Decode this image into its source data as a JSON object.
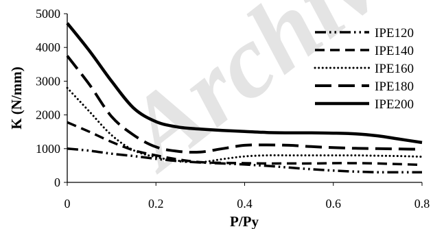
{
  "chart_data": {
    "type": "line",
    "xlabel": "P/Py",
    "ylabel": "K (N/mm)",
    "xlim": [
      0,
      0.8
    ],
    "ylim": [
      0,
      5000
    ],
    "x_ticks": [
      "0",
      "0.2",
      "0.4",
      "0.6",
      "0.8"
    ],
    "y_ticks": [
      "0",
      "1000",
      "2000",
      "3000",
      "4000",
      "5000"
    ],
    "grid": false,
    "legend_position": "right",
    "watermark": "Archive",
    "series": [
      {
        "name": "IPE120",
        "style": "dash-dot-dot",
        "x": [
          0,
          0.05,
          0.1,
          0.15,
          0.2,
          0.25,
          0.3,
          0.35,
          0.4,
          0.45,
          0.5,
          0.55,
          0.6,
          0.65,
          0.7,
          0.75,
          0.8
        ],
        "values": [
          1000,
          940,
          850,
          780,
          700,
          630,
          590,
          560,
          530,
          490,
          440,
          390,
          350,
          320,
          300,
          300,
          300
        ]
      },
      {
        "name": "IPE140",
        "style": "dash",
        "x": [
          0,
          0.05,
          0.1,
          0.15,
          0.2,
          0.25,
          0.3,
          0.35,
          0.4,
          0.45,
          0.5,
          0.55,
          0.6,
          0.65,
          0.7,
          0.75,
          0.8
        ],
        "values": [
          1780,
          1500,
          1200,
          950,
          800,
          680,
          600,
          580,
          570,
          560,
          560,
          560,
          570,
          570,
          560,
          540,
          520
        ]
      },
      {
        "name": "IPE160",
        "style": "dot",
        "x": [
          0,
          0.05,
          0.1,
          0.15,
          0.2,
          0.25,
          0.3,
          0.35,
          0.4,
          0.45,
          0.5,
          0.55,
          0.6,
          0.65,
          0.7,
          0.75,
          0.8
        ],
        "values": [
          2800,
          2100,
          1400,
          950,
          750,
          640,
          600,
          690,
          770,
          800,
          800,
          800,
          800,
          800,
          790,
          780,
          760
        ]
      },
      {
        "name": "IPE180",
        "style": "long-dash",
        "x": [
          0,
          0.05,
          0.1,
          0.15,
          0.2,
          0.25,
          0.3,
          0.35,
          0.4,
          0.45,
          0.5,
          0.55,
          0.6,
          0.65,
          0.7,
          0.75,
          0.8
        ],
        "values": [
          3750,
          2900,
          1950,
          1400,
          1050,
          920,
          900,
          1000,
          1100,
          1110,
          1100,
          1060,
          1030,
          1010,
          1000,
          990,
          980
        ]
      },
      {
        "name": "IPE200",
        "style": "solid",
        "x": [
          0,
          0.05,
          0.1,
          0.15,
          0.2,
          0.25,
          0.3,
          0.35,
          0.4,
          0.45,
          0.5,
          0.55,
          0.6,
          0.65,
          0.7,
          0.75,
          0.8
        ],
        "values": [
          4720,
          3900,
          3000,
          2200,
          1800,
          1640,
          1580,
          1540,
          1510,
          1480,
          1470,
          1470,
          1460,
          1440,
          1380,
          1280,
          1180
        ]
      }
    ]
  }
}
